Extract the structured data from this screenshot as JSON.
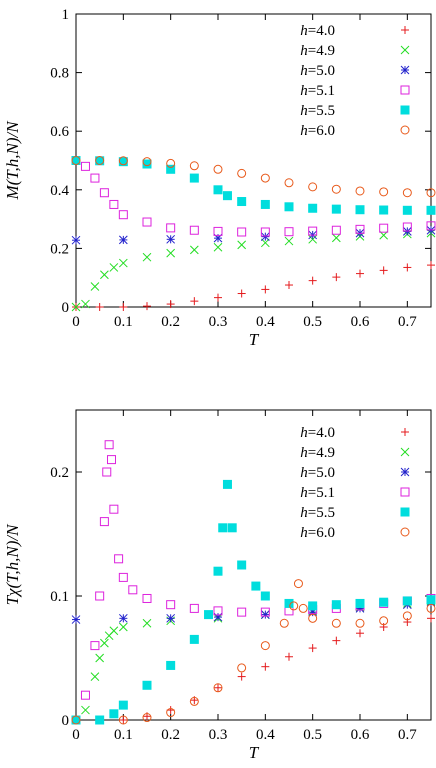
{
  "colors": {
    "h4.0": "#e41a1c",
    "h4.9": "#22dd22",
    "h5.0": "#2222cc",
    "h5.1": "#dd22dd",
    "h5.5": "#00dddd",
    "h6.0": "#e8591a"
  },
  "legend_items": [
    {
      "label": "h=4.0",
      "marker": "plus",
      "color": "#e41a1c"
    },
    {
      "label": "h=4.9",
      "marker": "cross",
      "color": "#22dd22"
    },
    {
      "label": "h=5.0",
      "marker": "star",
      "color": "#2222cc"
    },
    {
      "label": "h=5.1",
      "marker": "square-open",
      "color": "#dd22dd"
    },
    {
      "label": "h=5.5",
      "marker": "square-filled",
      "color": "#00dddd"
    },
    {
      "label": "h=6.0",
      "marker": "circle-open",
      "color": "#e8591a"
    }
  ],
  "chart_data": [
    {
      "type": "scatter",
      "ylabel": "M(T,h,N)/N",
      "xlabel": "T",
      "xlim": [
        0,
        0.75
      ],
      "ylim": [
        0,
        1
      ],
      "xticks": [
        "0",
        "0.1",
        "0.2",
        "0.3",
        "0.4",
        "0.5",
        "0.6",
        "0.7"
      ],
      "yticks": [
        "0",
        "0.2",
        "0.4",
        "0.6",
        "0.8",
        "1"
      ],
      "legend": "top-right",
      "grid": false,
      "series": [
        {
          "name": "h=4.0",
          "marker": "plus",
          "color": "#e41a1c",
          "x": [
            0.0,
            0.05,
            0.1,
            0.15,
            0.2,
            0.25,
            0.3,
            0.35,
            0.4,
            0.45,
            0.5,
            0.55,
            0.6,
            0.65,
            0.7,
            0.75
          ],
          "y": [
            0.0,
            0.0,
            0.0,
            0.003,
            0.01,
            0.02,
            0.032,
            0.046,
            0.06,
            0.075,
            0.09,
            0.102,
            0.114,
            0.125,
            0.135,
            0.143
          ]
        },
        {
          "name": "h=4.9",
          "marker": "cross",
          "color": "#22dd22",
          "x": [
            0.0,
            0.02,
            0.04,
            0.06,
            0.08,
            0.1,
            0.15,
            0.2,
            0.25,
            0.3,
            0.35,
            0.4,
            0.45,
            0.5,
            0.55,
            0.6,
            0.65,
            0.7,
            0.75
          ],
          "y": [
            0.0,
            0.01,
            0.07,
            0.11,
            0.135,
            0.15,
            0.17,
            0.184,
            0.195,
            0.204,
            0.212,
            0.219,
            0.225,
            0.231,
            0.236,
            0.241,
            0.245,
            0.249,
            0.252
          ]
        },
        {
          "name": "h=5.0",
          "marker": "star",
          "color": "#2222cc",
          "x": [
            0.0,
            0.1,
            0.2,
            0.3,
            0.4,
            0.5,
            0.6,
            0.7,
            0.75
          ],
          "y": [
            0.228,
            0.229,
            0.231,
            0.235,
            0.24,
            0.246,
            0.252,
            0.258,
            0.262
          ]
        },
        {
          "name": "h=5.1",
          "marker": "square-open",
          "color": "#dd22dd",
          "x": [
            0.0,
            0.02,
            0.04,
            0.06,
            0.08,
            0.1,
            0.15,
            0.2,
            0.25,
            0.3,
            0.35,
            0.4,
            0.45,
            0.5,
            0.55,
            0.6,
            0.65,
            0.7,
            0.75
          ],
          "y": [
            0.5,
            0.48,
            0.44,
            0.39,
            0.35,
            0.315,
            0.29,
            0.27,
            0.262,
            0.258,
            0.256,
            0.256,
            0.257,
            0.259,
            0.262,
            0.265,
            0.269,
            0.273,
            0.277
          ]
        },
        {
          "name": "h=5.5",
          "marker": "square-filled",
          "color": "#00dddd",
          "x": [
            0.0,
            0.05,
            0.1,
            0.15,
            0.2,
            0.25,
            0.3,
            0.32,
            0.35,
            0.4,
            0.45,
            0.5,
            0.55,
            0.6,
            0.65,
            0.7,
            0.75
          ],
          "y": [
            0.5,
            0.499,
            0.496,
            0.488,
            0.47,
            0.44,
            0.4,
            0.38,
            0.36,
            0.35,
            0.342,
            0.337,
            0.334,
            0.332,
            0.331,
            0.33,
            0.33
          ]
        },
        {
          "name": "h=6.0",
          "marker": "circle-open",
          "color": "#e8591a",
          "x": [
            0.0,
            0.05,
            0.1,
            0.15,
            0.2,
            0.25,
            0.3,
            0.35,
            0.4,
            0.45,
            0.5,
            0.55,
            0.6,
            0.65,
            0.7,
            0.75
          ],
          "y": [
            0.5,
            0.5,
            0.499,
            0.496,
            0.49,
            0.482,
            0.47,
            0.456,
            0.44,
            0.424,
            0.41,
            0.402,
            0.396,
            0.393,
            0.39,
            0.39
          ]
        }
      ]
    },
    {
      "type": "scatter",
      "ylabel": "Tχ(T,h,N)/N",
      "xlabel": "T",
      "xlim": [
        0,
        0.75
      ],
      "ylim": [
        0,
        0.25
      ],
      "xticks": [
        "0",
        "0.1",
        "0.2",
        "0.3",
        "0.4",
        "0.5",
        "0.6",
        "0.7"
      ],
      "yticks": [
        "0",
        "0.1",
        "0.2"
      ],
      "legend": "top-right",
      "grid": false,
      "series": [
        {
          "name": "h=4.0",
          "marker": "plus",
          "color": "#e41a1c",
          "x": [
            0.0,
            0.1,
            0.15,
            0.2,
            0.25,
            0.3,
            0.35,
            0.4,
            0.45,
            0.5,
            0.55,
            0.6,
            0.65,
            0.7,
            0.75
          ],
          "y": [
            0.0,
            0.0,
            0.003,
            0.008,
            0.016,
            0.026,
            0.035,
            0.043,
            0.051,
            0.058,
            0.064,
            0.07,
            0.075,
            0.079,
            0.082
          ]
        },
        {
          "name": "h=4.9",
          "marker": "cross",
          "color": "#22dd22",
          "x": [
            0.0,
            0.02,
            0.04,
            0.05,
            0.06,
            0.07,
            0.08,
            0.1,
            0.15,
            0.2,
            0.3,
            0.4,
            0.5,
            0.6,
            0.7,
            0.75
          ],
          "y": [
            0.0,
            0.008,
            0.035,
            0.05,
            0.062,
            0.068,
            0.072,
            0.075,
            0.078,
            0.08,
            0.082,
            0.085,
            0.088,
            0.091,
            0.094,
            0.096
          ]
        },
        {
          "name": "h=5.0",
          "marker": "star",
          "color": "#2222cc",
          "x": [
            0.0,
            0.1,
            0.2,
            0.3,
            0.4,
            0.5,
            0.6,
            0.7,
            0.75
          ],
          "y": [
            0.081,
            0.082,
            0.082,
            0.083,
            0.085,
            0.087,
            0.09,
            0.093,
            0.095
          ]
        },
        {
          "name": "h=5.1",
          "marker": "square-open",
          "color": "#dd22dd",
          "x": [
            0.0,
            0.02,
            0.04,
            0.05,
            0.06,
            0.065,
            0.07,
            0.075,
            0.08,
            0.09,
            0.1,
            0.12,
            0.15,
            0.2,
            0.25,
            0.3,
            0.35,
            0.4,
            0.45,
            0.5,
            0.55,
            0.6,
            0.65,
            0.7,
            0.75
          ],
          "y": [
            0.0,
            0.02,
            0.06,
            0.1,
            0.16,
            0.2,
            0.222,
            0.21,
            0.17,
            0.13,
            0.115,
            0.105,
            0.098,
            0.093,
            0.09,
            0.088,
            0.087,
            0.087,
            0.088,
            0.089,
            0.09,
            0.092,
            0.094,
            0.096,
            0.098
          ]
        },
        {
          "name": "h=5.5",
          "marker": "square-filled",
          "color": "#00dddd",
          "x": [
            0.0,
            0.05,
            0.08,
            0.1,
            0.15,
            0.2,
            0.25,
            0.28,
            0.3,
            0.31,
            0.32,
            0.33,
            0.35,
            0.38,
            0.4,
            0.45,
            0.5,
            0.55,
            0.6,
            0.65,
            0.7,
            0.75
          ],
          "y": [
            0.0,
            0.0,
            0.005,
            0.012,
            0.028,
            0.044,
            0.065,
            0.085,
            0.12,
            0.155,
            0.19,
            0.155,
            0.125,
            0.108,
            0.1,
            0.094,
            0.092,
            0.093,
            0.094,
            0.095,
            0.096,
            0.097
          ]
        },
        {
          "name": "h=6.0",
          "marker": "circle-open",
          "color": "#e8591a",
          "x": [
            0.0,
            0.1,
            0.15,
            0.2,
            0.25,
            0.3,
            0.35,
            0.4,
            0.44,
            0.46,
            0.47,
            0.48,
            0.5,
            0.55,
            0.6,
            0.65,
            0.7,
            0.75
          ],
          "y": [
            0.0,
            0.0,
            0.002,
            0.006,
            0.015,
            0.026,
            0.042,
            0.06,
            0.078,
            0.092,
            0.11,
            0.09,
            0.082,
            0.078,
            0.078,
            0.08,
            0.084,
            0.09
          ]
        }
      ]
    }
  ]
}
